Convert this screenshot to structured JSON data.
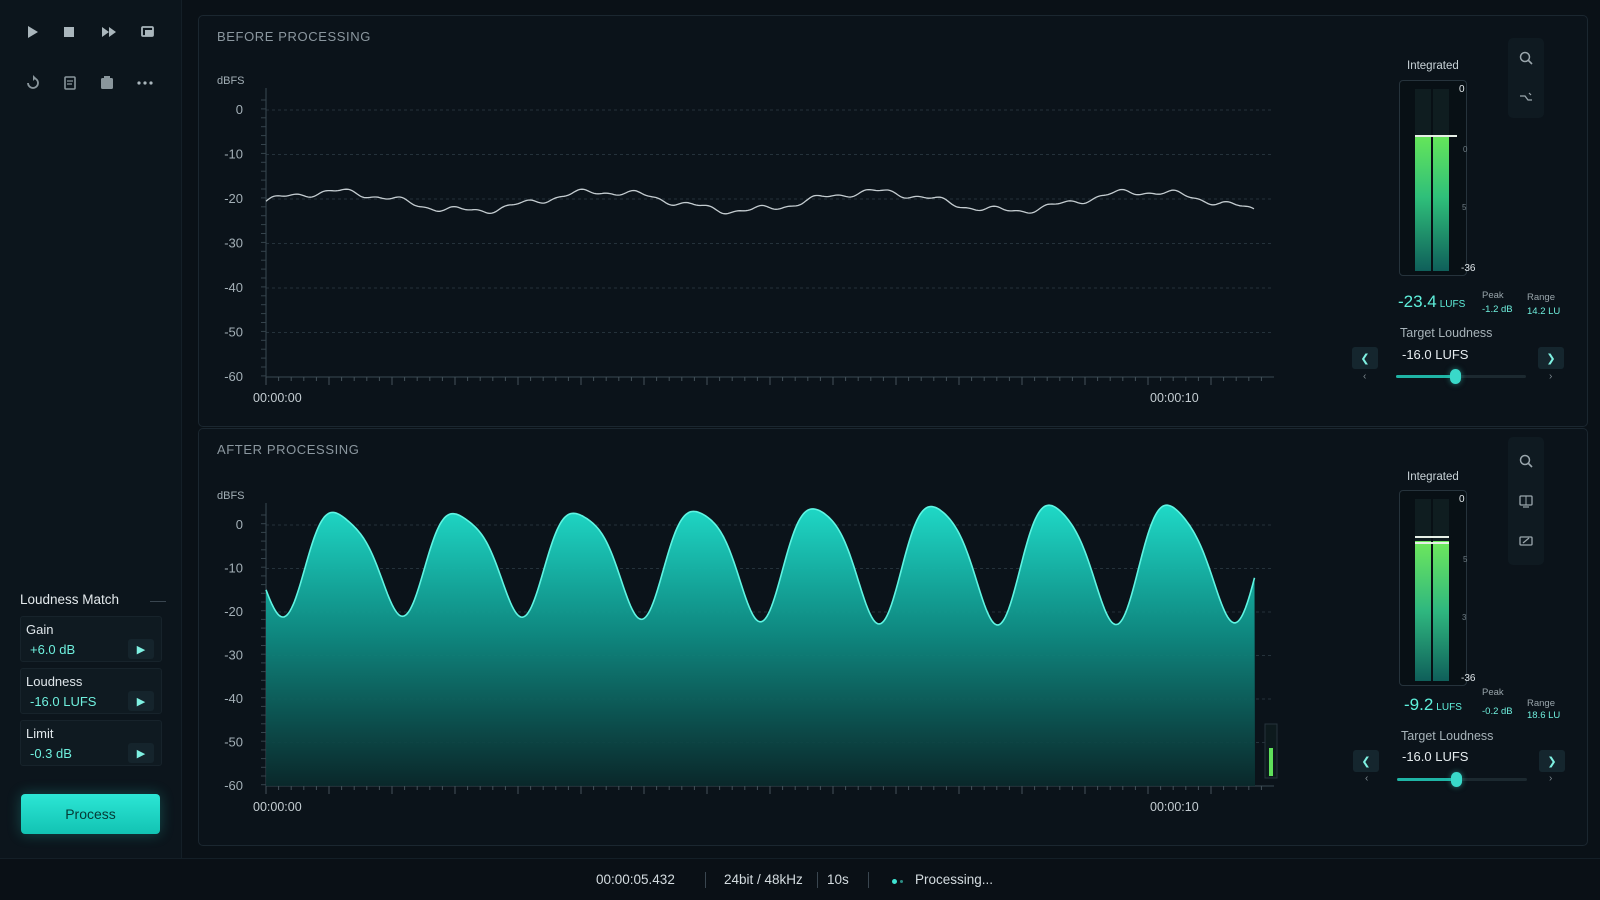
{
  "toolbar": {
    "row1": [
      "play-icon",
      "stop-icon",
      "fast-forward-icon",
      "export-icon"
    ],
    "row2": [
      "loop-icon",
      "notes-icon",
      "snapshot-icon",
      "more-icon"
    ]
  },
  "loudness_match": {
    "title": "Loudness Match",
    "params": [
      {
        "label": "Gain",
        "value": "+6.0 dB"
      },
      {
        "label": "Loudness",
        "value": "-16.0 LUFS"
      },
      {
        "label": "Limit",
        "value": "-0.3 dB"
      }
    ],
    "process_label": "Process"
  },
  "before": {
    "title": "BEFORE PROCESSING",
    "unit": "dBFS",
    "y_ticks": [
      "0",
      "-10",
      "-20",
      "-30",
      "-40",
      "-50",
      "-60"
    ],
    "time_start": "00:00:00",
    "time_end": "00:00:10",
    "meter": {
      "label": "Integrated",
      "scale_top": "0",
      "scale_bottom": "-36",
      "scale_minor": [
        "0",
        "5"
      ],
      "value": "-23.4",
      "unit": "LUFS",
      "peak_label": "Peak",
      "peak_value": "-1.2 dB",
      "range_label": "Range",
      "range_value": "14.2 LU",
      "target_label": "Target Loudness",
      "target_value": "-16.0 LUFS",
      "slider_level": 0.45
    }
  },
  "after": {
    "title": "AFTER PROCESSING",
    "unit": "dBFS",
    "y_ticks": [
      "0",
      "-10",
      "-20",
      "-30",
      "-40",
      "-50",
      "-60"
    ],
    "time_start": "00:00:00",
    "time_end": "00:00:10",
    "meter": {
      "label": "Integrated",
      "scale_top": "0",
      "scale_bottom": "-36",
      "scale_minor": [
        "5",
        "3"
      ],
      "value": "-9.2",
      "unit": "LUFS",
      "peak_label": "Peak",
      "peak_value": "-0.2 dB",
      "range_label": "Range",
      "range_value": "18.6 LU",
      "target_label": "Target Loudness",
      "target_value": "-16.0 LUFS",
      "slider_level": 0.45
    }
  },
  "status": {
    "time": "00:00:05.432",
    "format": "24bit / 48kHz",
    "duration": "10s",
    "state": "Processing..."
  },
  "colors": {
    "accent": "#2ce6d5",
    "meter_green": "#5fe05a",
    "meter_teal": "#1a9c8f",
    "background": "#0a1117"
  }
}
